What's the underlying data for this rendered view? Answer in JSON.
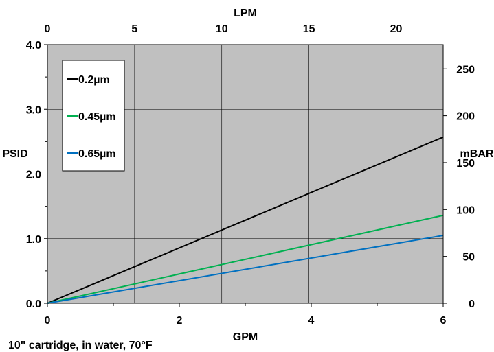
{
  "chart_data": {
    "type": "line",
    "xlabel": "GPM",
    "ylabel": "PSID",
    "x2label": "LPM",
    "y2label": "mBAR",
    "caption": "10\" cartridge, in water, 70°F",
    "xlim": [
      0,
      6
    ],
    "ylim": [
      0,
      4
    ],
    "x2lim": [
      0,
      22.7
    ],
    "y2lim": [
      0,
      275.8
    ],
    "x_ticks": [
      "0",
      "2",
      "4",
      "6"
    ],
    "y_ticks": [
      "0.0",
      "1.0",
      "2.0",
      "3.0",
      "4.0"
    ],
    "x2_ticks": [
      "0",
      "5",
      "10",
      "15",
      "20"
    ],
    "y2_ticks": [
      "0",
      "50",
      "100",
      "150",
      "200",
      "250"
    ],
    "x2_tick_values": [
      0,
      5,
      10,
      15,
      20
    ],
    "y2_tick_values": [
      0,
      50,
      100,
      150,
      200,
      250
    ],
    "grid": true,
    "legend_position": "top-left",
    "plot_background": "#c0c0c0",
    "series": [
      {
        "name": "0.2µm",
        "color": "#000000",
        "x": [
          0,
          6
        ],
        "y": [
          0,
          2.57
        ]
      },
      {
        "name": "0.45µm",
        "color": "#00b050",
        "x": [
          0,
          6
        ],
        "y": [
          0,
          1.36
        ]
      },
      {
        "name": "0.65µm",
        "color": "#0070c0",
        "x": [
          0,
          6
        ],
        "y": [
          0,
          1.05
        ]
      }
    ]
  }
}
